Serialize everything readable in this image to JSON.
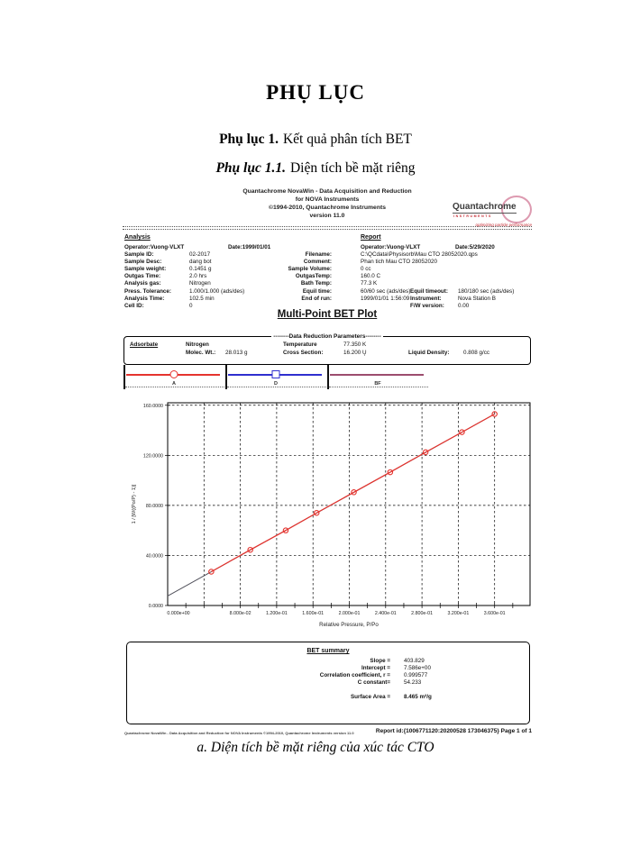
{
  "doc": {
    "title": "PHỤ LỤC",
    "s1_label": "Phụ lục 1.",
    "s1_text": "Kết quả phân tích BET",
    "s2_label": "Phụ lục 1.1.",
    "s2_text": "Diện tích bề mặt riêng",
    "caption": "a. Diện tích bề mặt riêng của xúc tác CTO"
  },
  "report": {
    "header_lines": {
      "l1": "Quantachrome NovaWin - Data Acquisition and Reduction",
      "l2": "for NOVA Instruments",
      "l3": "©1994-2010, Quantachrome Instruments",
      "l4": "version 11.0"
    },
    "logo": {
      "name": "Quantachrome",
      "sub": "INSTRUMENTS",
      "tagline": "optimizing particle performance",
      "circle_color": "#dd9ab0",
      "accent_color": "#c4262e"
    },
    "analysis_heading": "Analysis",
    "report_heading": "Report",
    "rows": [
      {
        "a": "Operator:Vuong-VLXT",
        "d1": "Date:1999/01/01",
        "r": "Operator:Vuong-VLXT",
        "d2": "Date:5/29/2020"
      },
      {
        "al": "Sample ID:",
        "av": "02-2017",
        "rl": "Filename:",
        "rv": "C:\\QCdata\\Physisorb\\Mau CTO 28052020.qps"
      },
      {
        "al": "Sample Desc:",
        "av": "dang bot",
        "rl": "Comment:",
        "rv": "Phan tich Mau CTO 28052020"
      },
      {
        "al": "Sample weight:",
        "av": "0.1451 g",
        "rl": "Sample Volume:",
        "rv": "0 cc"
      },
      {
        "al": "Outgas Time:",
        "av": "2.0 hrs",
        "rl": "OutgasTemp:",
        "rv": "160.0 C"
      },
      {
        "al": "Analysis gas:",
        "av": "Nitrogen",
        "rl": "Bath Temp:",
        "rv": "77.3 K"
      },
      {
        "al": "Press. Tolerance:",
        "av": "1.000/1.000 (ads/des)",
        "rl": "Equil time:",
        "rv": "60/60 sec (ads/des)",
        "xl": "Equil timeout:",
        "xv": "180/180 sec (ads/des)"
      },
      {
        "al": "Analysis Time:",
        "av": "102.5 min",
        "rl": "End of run:",
        "rv": "1999/01/01 1:56:09",
        "xl": "Instrument:",
        "xv": "Nova Station B"
      },
      {
        "al": "Cell ID:",
        "av": "0",
        "xl": "F/W version:",
        "xv": "0.00"
      }
    ],
    "plot_title": "Multi-Point BET Plot",
    "params": {
      "box_title": "--------Data Reduction Parameters--------",
      "adsorbate_label": "Adsorbate",
      "adsorbate_value": "Nitrogen",
      "molec_label": "Molec. Wt.:",
      "molec_value": "28.013 g",
      "temp_label": "Temperature",
      "temp_value": "77.350 K",
      "cross_label": "Cross Section:",
      "cross_value": "16.200 Ų",
      "density_label": "Liquid Density:",
      "density_value": "0.808 g/cc"
    },
    "legend": {
      "items": [
        {
          "label": "A",
          "marker": "circle",
          "color": "#e5332e"
        },
        {
          "label": "D",
          "marker": "square",
          "color": "#2f2fcf"
        },
        {
          "label": "BF",
          "marker": "none",
          "color": "#9c4d6e"
        }
      ]
    },
    "bet_summary": {
      "title": "BET summary",
      "rows": [
        {
          "label": "Slope =",
          "value": "403.829"
        },
        {
          "label": "Intercept =",
          "value": "7.586e+00"
        },
        {
          "label": "Correlation coefficient, r =",
          "value": "0.999577"
        },
        {
          "label": "C constant=",
          "value": "54.233"
        }
      ],
      "surface_area_label": "Surface Area =",
      "surface_area_value": "8.465 m²/g"
    },
    "footer": {
      "left": "Quantachrome NovaWin - Data Acquisition and Reduction for NOVA Instruments ©1994-2010, Quantachrome Instruments version 11.0",
      "right": "Report id:{1006771120:20200528 173046375} Page 1 of 1"
    }
  },
  "chart_data": {
    "type": "scatter",
    "title": "Multi-Point BET Plot",
    "xlabel": "Relative Pressure, P/Po",
    "ylabel": "1 / [W((Po/P) - 1)]",
    "xlim": [
      0,
      0.399
    ],
    "ylim": [
      0,
      162
    ],
    "grid": "dashed",
    "x_ticks": [
      0,
      0.04,
      0.08,
      0.12,
      0.16,
      0.2,
      0.24,
      0.28,
      0.32,
      0.36
    ],
    "x_tick_labels": [
      "0.000e+00",
      "",
      "8.000e-02",
      "1.200e-01",
      "1.600e-01",
      "2.000e-01",
      "2.400e-01",
      "2.800e-01",
      "3.200e-01",
      "3.600e-01"
    ],
    "y_ticks": [
      0,
      40,
      80,
      120,
      160
    ],
    "y_tick_labels": [
      "0.0000",
      "40.0000",
      "80.0000",
      "120.0000",
      "160.0000"
    ],
    "legend_position": "above-left",
    "fit": {
      "slope": 403.829,
      "intercept": 7.586,
      "correlation_r": 0.999577,
      "c_constant": 54.233,
      "surface_area": "8.465 m²/g"
    },
    "series": [
      {
        "name": "BET fit line",
        "marker": "none",
        "color": "#52525c",
        "width": 1,
        "x": [
          0,
          0.3605
        ],
        "y": [
          7.586,
          153.2
        ]
      },
      {
        "name": "A (adsorption points)",
        "marker": "circle",
        "color": "#e5332e",
        "width": 1.2,
        "x": [
          0.048,
          0.091,
          0.13,
          0.164,
          0.205,
          0.245,
          0.284,
          0.324,
          0.36
        ],
        "y": [
          27.0,
          44.5,
          60.0,
          74.0,
          90.5,
          106.5,
          122.5,
          138.5,
          153.0
        ]
      }
    ]
  }
}
